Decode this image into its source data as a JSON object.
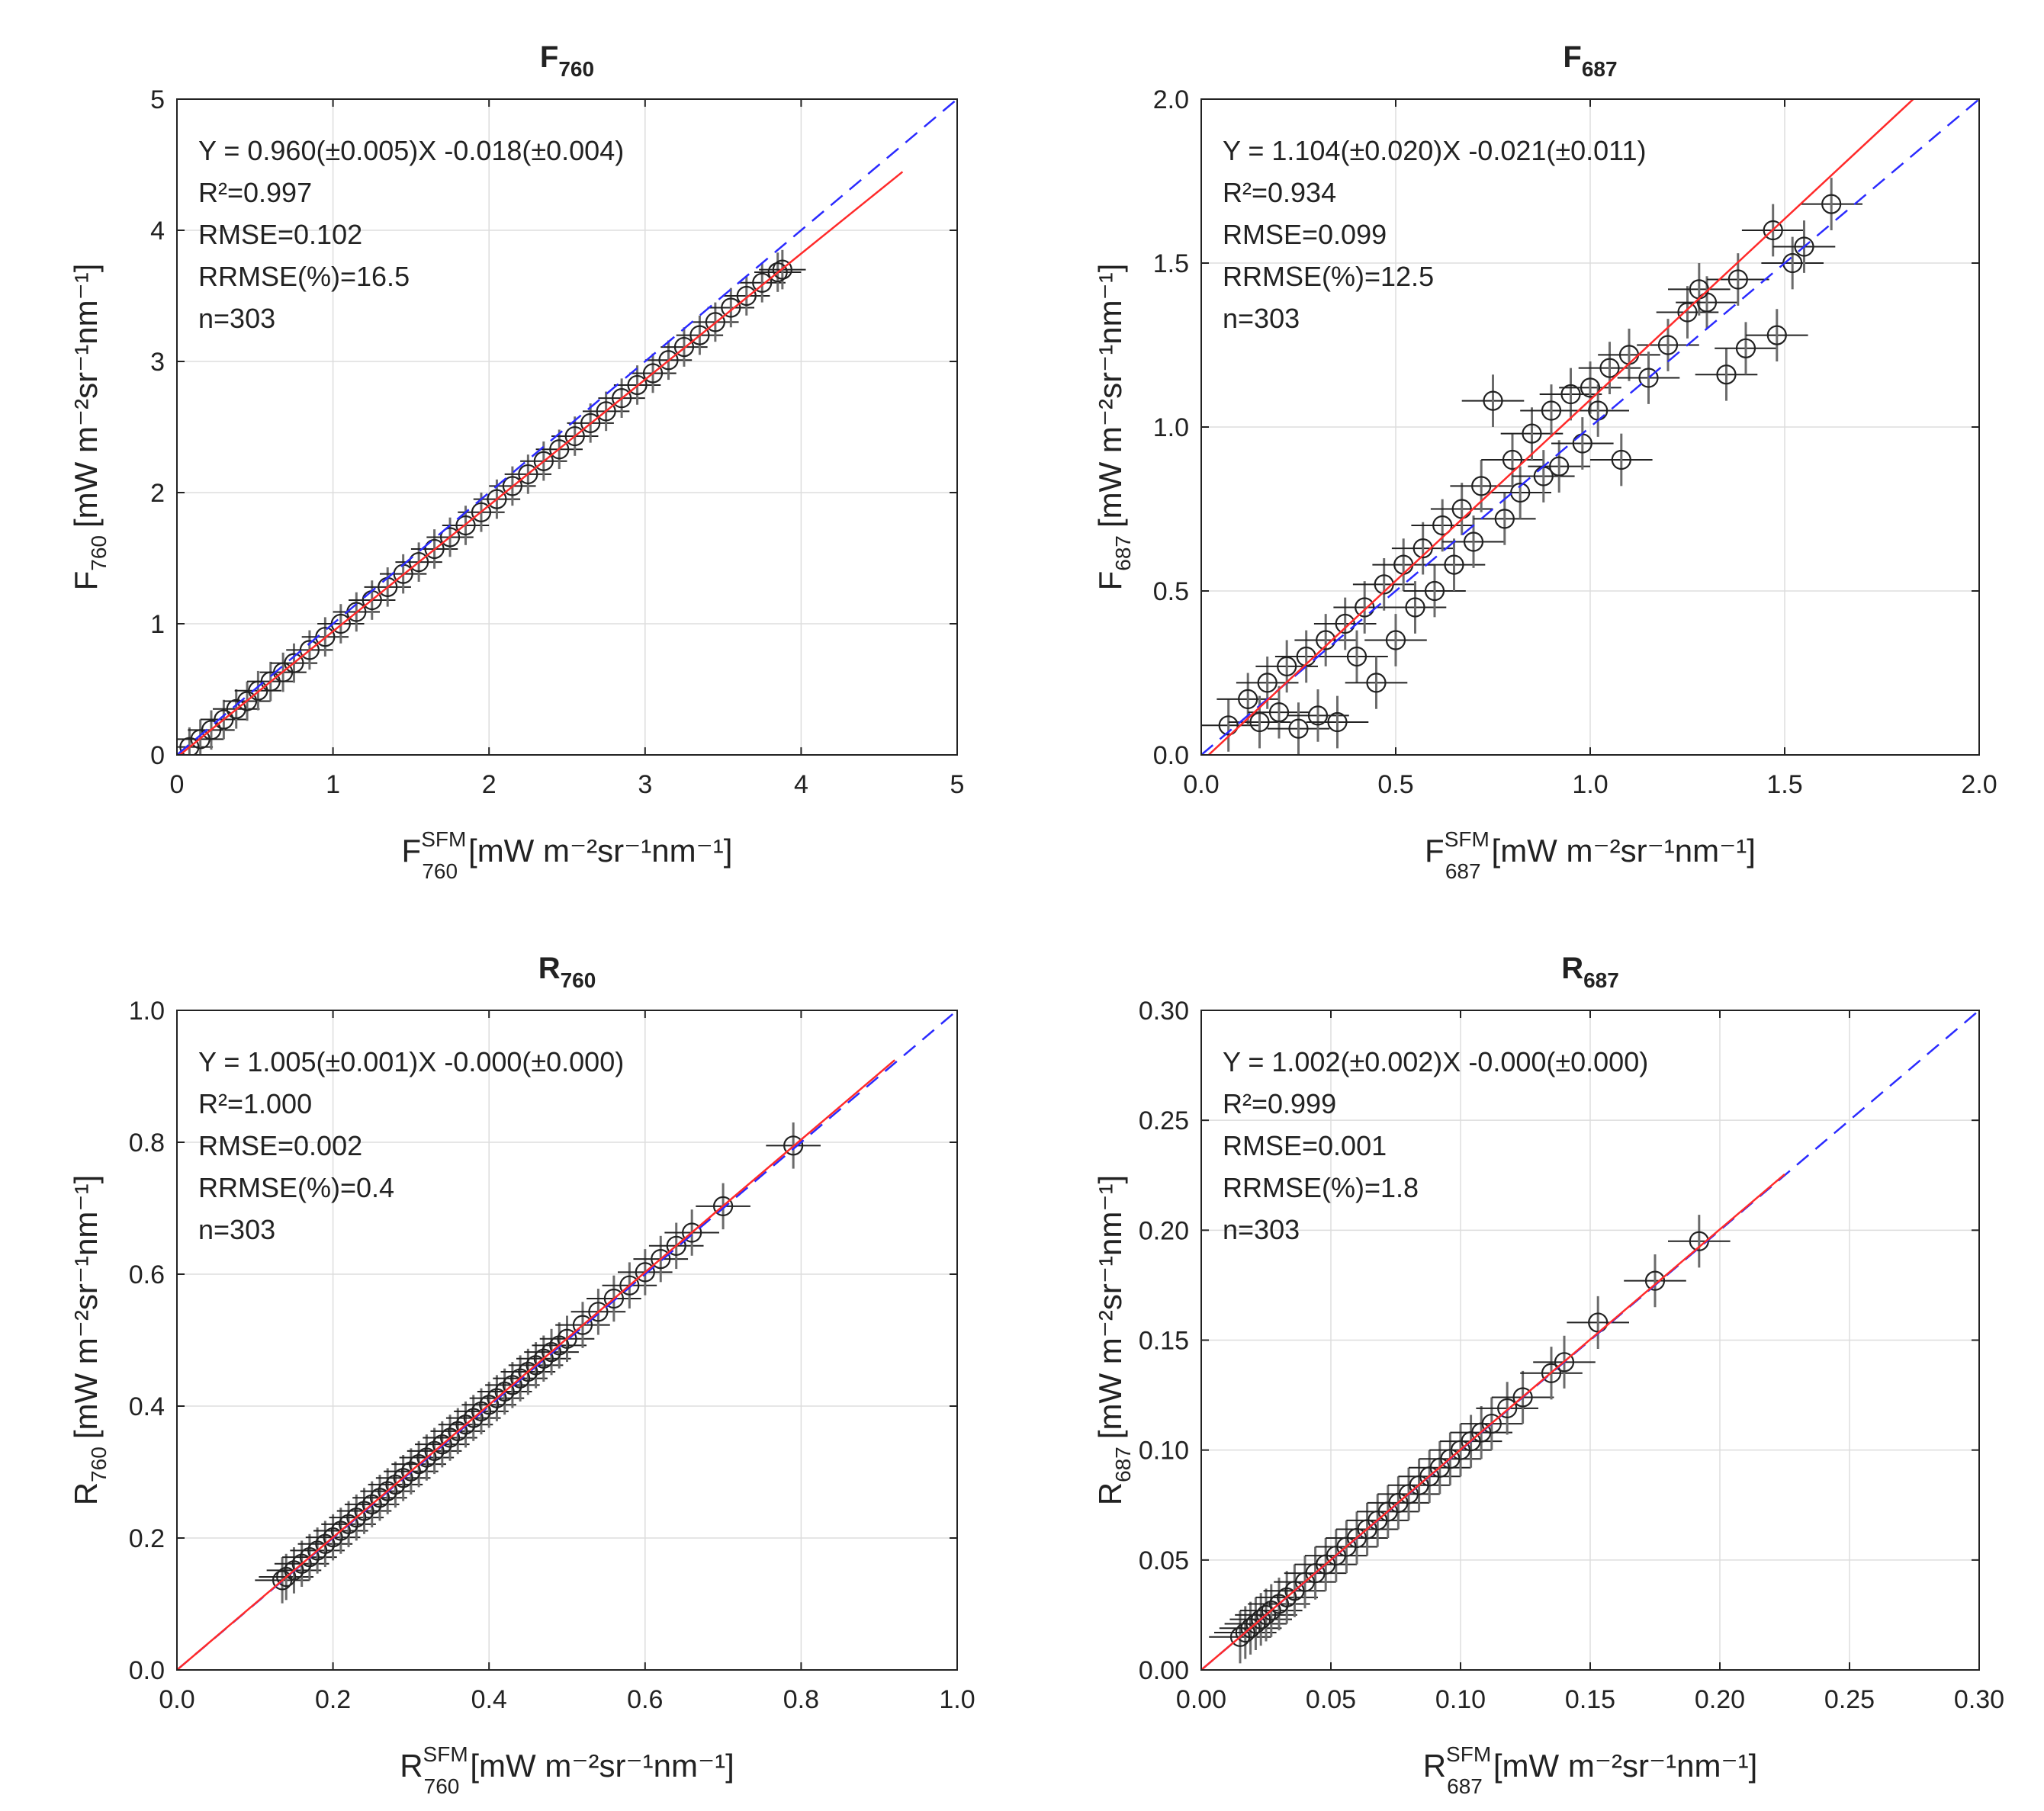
{
  "figure": {
    "colors": {
      "points": "#222222",
      "error_bars": "#6b6b6b",
      "fit_line": "#ff2a2a",
      "one_to_one": "#2a2aff",
      "grid": "#dddddd"
    }
  },
  "chart_data": [
    {
      "type": "scatter",
      "title_main": "F",
      "title_sub": "760",
      "xlabel_main": "F",
      "xlabel_sup": "SFM",
      "xlabel_sub": "760",
      "ylabel_main": "F",
      "ylabel_sub": "760",
      "units": "[mW m⁻²sr⁻¹nm⁻¹]",
      "xlim": [
        0,
        5
      ],
      "ylim": [
        0,
        5
      ],
      "xticks": [
        0,
        1,
        2,
        3,
        4,
        5
      ],
      "yticks": [
        0,
        1,
        2,
        3,
        4,
        5
      ],
      "xtick_labels": [
        "0",
        "1",
        "2",
        "3",
        "4",
        "5"
      ],
      "ytick_labels": [
        "0",
        "1",
        "2",
        "3",
        "4",
        "5"
      ],
      "grid": true,
      "stats": {
        "equation": "Y = 0.960(±0.005)X -0.018(±0.004)",
        "r2": "R²=0.997",
        "rmse": "RMSE=0.102",
        "rrmse": "RRMSE(%)=16.5",
        "n": "n=303"
      },
      "fit": {
        "slope": 0.96,
        "intercept": -0.018,
        "x_range": [
          0,
          4.65
        ]
      },
      "one_to_one_range": [
        0,
        5
      ],
      "points": [
        [
          0.08,
          0.06
        ],
        [
          0.15,
          0.12
        ],
        [
          0.22,
          0.19
        ],
        [
          0.3,
          0.27
        ],
        [
          0.38,
          0.35
        ],
        [
          0.45,
          0.41
        ],
        [
          0.52,
          0.49
        ],
        [
          0.6,
          0.56
        ],
        [
          0.68,
          0.63
        ],
        [
          0.75,
          0.7
        ],
        [
          0.85,
          0.8
        ],
        [
          0.95,
          0.9
        ],
        [
          1.05,
          1.0
        ],
        [
          1.15,
          1.09
        ],
        [
          1.25,
          1.18
        ],
        [
          1.35,
          1.28
        ],
        [
          1.45,
          1.38
        ],
        [
          1.55,
          1.47
        ],
        [
          1.65,
          1.57
        ],
        [
          1.75,
          1.66
        ],
        [
          1.85,
          1.75
        ],
        [
          1.95,
          1.85
        ],
        [
          2.05,
          1.95
        ],
        [
          2.15,
          2.05
        ],
        [
          2.25,
          2.14
        ],
        [
          2.35,
          2.24
        ],
        [
          2.45,
          2.33
        ],
        [
          2.55,
          2.43
        ],
        [
          2.65,
          2.53
        ],
        [
          2.75,
          2.62
        ],
        [
          2.85,
          2.72
        ],
        [
          2.95,
          2.82
        ],
        [
          3.05,
          2.91
        ],
        [
          3.15,
          3.01
        ],
        [
          3.25,
          3.11
        ],
        [
          3.35,
          3.2
        ],
        [
          3.45,
          3.3
        ],
        [
          3.55,
          3.41
        ],
        [
          3.65,
          3.5
        ],
        [
          3.75,
          3.6
        ],
        [
          3.85,
          3.68
        ],
        [
          3.88,
          3.7
        ]
      ],
      "xerr": 0.15,
      "yerr": 0.15
    },
    {
      "type": "scatter",
      "title_main": "F",
      "title_sub": "687",
      "xlabel_main": "F",
      "xlabel_sup": "SFM",
      "xlabel_sub": "687",
      "ylabel_main": "F",
      "ylabel_sub": "687",
      "units": "[mW m⁻²sr⁻¹nm⁻¹]",
      "xlim": [
        0,
        2.0
      ],
      "ylim": [
        0,
        2.0
      ],
      "xticks": [
        0,
        0.5,
        1.0,
        1.5,
        2.0
      ],
      "yticks": [
        0,
        0.5,
        1.0,
        1.5,
        2.0
      ],
      "xtick_labels": [
        "0.0",
        "0.5",
        "1.0",
        "1.5",
        "2.0"
      ],
      "ytick_labels": [
        "0.0",
        "0.5",
        "1.0",
        "1.5",
        "2.0"
      ],
      "grid": true,
      "stats": {
        "equation": "Y = 1.104(±0.020)X -0.021(±0.011)",
        "r2": "R²=0.934",
        "rmse": "RMSE=0.099",
        "rrmse": "RRMSE(%)=12.5",
        "n": "n=303"
      },
      "fit": {
        "slope": 1.104,
        "intercept": -0.021,
        "x_range": [
          0,
          1.83
        ]
      },
      "one_to_one_range": [
        0,
        2.0
      ],
      "points": [
        [
          0.07,
          0.09
        ],
        [
          0.12,
          0.17
        ],
        [
          0.15,
          0.1
        ],
        [
          0.17,
          0.22
        ],
        [
          0.2,
          0.13
        ],
        [
          0.22,
          0.27
        ],
        [
          0.25,
          0.08
        ],
        [
          0.27,
          0.3
        ],
        [
          0.3,
          0.12
        ],
        [
          0.32,
          0.35
        ],
        [
          0.35,
          0.1
        ],
        [
          0.37,
          0.4
        ],
        [
          0.4,
          0.3
        ],
        [
          0.42,
          0.45
        ],
        [
          0.45,
          0.22
        ],
        [
          0.47,
          0.52
        ],
        [
          0.5,
          0.35
        ],
        [
          0.52,
          0.58
        ],
        [
          0.55,
          0.45
        ],
        [
          0.57,
          0.63
        ],
        [
          0.6,
          0.5
        ],
        [
          0.62,
          0.7
        ],
        [
          0.65,
          0.58
        ],
        [
          0.67,
          0.75
        ],
        [
          0.7,
          0.65
        ],
        [
          0.72,
          0.82
        ],
        [
          0.75,
          1.08
        ],
        [
          0.78,
          0.72
        ],
        [
          0.8,
          0.9
        ],
        [
          0.82,
          0.8
        ],
        [
          0.85,
          0.98
        ],
        [
          0.88,
          0.85
        ],
        [
          0.9,
          1.05
        ],
        [
          0.92,
          0.88
        ],
        [
          0.95,
          1.1
        ],
        [
          0.98,
          0.95
        ],
        [
          1.0,
          1.12
        ],
        [
          1.02,
          1.05
        ],
        [
          1.05,
          1.18
        ],
        [
          1.08,
          0.9
        ],
        [
          1.1,
          1.22
        ],
        [
          1.15,
          1.15
        ],
        [
          1.2,
          1.25
        ],
        [
          1.25,
          1.35
        ],
        [
          1.28,
          1.42
        ],
        [
          1.3,
          1.38
        ],
        [
          1.35,
          1.16
        ],
        [
          1.38,
          1.45
        ],
        [
          1.4,
          1.24
        ],
        [
          1.47,
          1.6
        ],
        [
          1.48,
          1.28
        ],
        [
          1.52,
          1.5
        ],
        [
          1.55,
          1.55
        ],
        [
          1.62,
          1.68
        ]
      ],
      "xerr": 0.08,
      "yerr": 0.08
    },
    {
      "type": "scatter",
      "title_main": "R",
      "title_sub": "760",
      "xlabel_main": "R",
      "xlabel_sup": "SFM",
      "xlabel_sub": "760",
      "ylabel_main": "R",
      "ylabel_sub": "760",
      "units": "[mW m⁻²sr⁻¹nm⁻¹]",
      "xlim": [
        0,
        1.0
      ],
      "ylim": [
        0,
        1.0
      ],
      "xticks": [
        0,
        0.2,
        0.4,
        0.6,
        0.8,
        1.0
      ],
      "yticks": [
        0,
        0.2,
        0.4,
        0.6,
        0.8,
        1.0
      ],
      "xtick_labels": [
        "0.0",
        "0.2",
        "0.4",
        "0.6",
        "0.8",
        "1.0"
      ],
      "ytick_labels": [
        "0.0",
        "0.2",
        "0.4",
        "0.6",
        "0.8",
        "1.0"
      ],
      "grid": true,
      "stats": {
        "equation": "Y = 1.005(±0.001)X -0.000(±0.000)",
        "r2": "R²=1.000",
        "rmse": "RMSE=0.002",
        "rrmse": "RRMSE(%)=0.4",
        "n": "n=303"
      },
      "fit": {
        "slope": 1.005,
        "intercept": 0.0,
        "x_range": [
          0,
          0.92
        ]
      },
      "one_to_one_range": [
        0,
        1.0
      ],
      "points": [
        [
          0.135,
          0.136
        ],
        [
          0.14,
          0.141
        ],
        [
          0.15,
          0.151
        ],
        [
          0.16,
          0.161
        ],
        [
          0.17,
          0.171
        ],
        [
          0.18,
          0.181
        ],
        [
          0.19,
          0.191
        ],
        [
          0.2,
          0.201
        ],
        [
          0.21,
          0.211
        ],
        [
          0.22,
          0.221
        ],
        [
          0.23,
          0.231
        ],
        [
          0.24,
          0.241
        ],
        [
          0.25,
          0.251
        ],
        [
          0.26,
          0.261
        ],
        [
          0.27,
          0.271
        ],
        [
          0.28,
          0.281
        ],
        [
          0.29,
          0.291
        ],
        [
          0.3,
          0.301
        ],
        [
          0.31,
          0.312
        ],
        [
          0.32,
          0.322
        ],
        [
          0.33,
          0.332
        ],
        [
          0.34,
          0.342
        ],
        [
          0.35,
          0.352
        ],
        [
          0.36,
          0.362
        ],
        [
          0.37,
          0.372
        ],
        [
          0.38,
          0.382
        ],
        [
          0.39,
          0.392
        ],
        [
          0.4,
          0.402
        ],
        [
          0.41,
          0.412
        ],
        [
          0.42,
          0.422
        ],
        [
          0.43,
          0.432
        ],
        [
          0.44,
          0.442
        ],
        [
          0.45,
          0.452
        ],
        [
          0.46,
          0.462
        ],
        [
          0.47,
          0.472
        ],
        [
          0.48,
          0.482
        ],
        [
          0.49,
          0.492
        ],
        [
          0.5,
          0.502
        ],
        [
          0.52,
          0.523
        ],
        [
          0.54,
          0.543
        ],
        [
          0.56,
          0.563
        ],
        [
          0.58,
          0.583
        ],
        [
          0.6,
          0.603
        ],
        [
          0.62,
          0.623
        ],
        [
          0.64,
          0.643
        ],
        [
          0.66,
          0.663
        ],
        [
          0.7,
          0.703
        ],
        [
          0.79,
          0.795
        ]
      ],
      "xerr": 0.035,
      "yerr": 0.035
    },
    {
      "type": "scatter",
      "title_main": "R",
      "title_sub": "687",
      "xlabel_main": "R",
      "xlabel_sup": "SFM",
      "xlabel_sub": "687",
      "ylabel_main": "R",
      "ylabel_sub": "687",
      "units": "[mW m⁻²sr⁻¹nm⁻¹]",
      "xlim": [
        0,
        0.3
      ],
      "ylim": [
        0,
        0.3
      ],
      "xticks": [
        0,
        0.05,
        0.1,
        0.15,
        0.2,
        0.25,
        0.3
      ],
      "yticks": [
        0,
        0.05,
        0.1,
        0.15,
        0.2,
        0.25,
        0.3
      ],
      "xtick_labels": [
        "0.00",
        "0.05",
        "0.10",
        "0.15",
        "0.20",
        "0.25",
        "0.30"
      ],
      "ytick_labels": [
        "0.00",
        "0.05",
        "0.10",
        "0.15",
        "0.20",
        "0.25",
        "0.30"
      ],
      "grid": true,
      "stats": {
        "equation": "Y = 1.002(±0.002)X -0.000(±0.000)",
        "r2": "R²=0.999",
        "rmse": "RMSE=0.001",
        "rrmse": "RRMSE(%)=1.8",
        "n": "n=303"
      },
      "fit": {
        "slope": 1.002,
        "intercept": 0.0,
        "x_range": [
          0,
          0.225
        ]
      },
      "one_to_one_range": [
        0,
        0.3
      ],
      "points": [
        [
          0.015,
          0.015
        ],
        [
          0.017,
          0.017
        ],
        [
          0.019,
          0.019
        ],
        [
          0.021,
          0.021
        ],
        [
          0.023,
          0.023
        ],
        [
          0.025,
          0.025
        ],
        [
          0.027,
          0.027
        ],
        [
          0.03,
          0.03
        ],
        [
          0.033,
          0.033
        ],
        [
          0.036,
          0.036
        ],
        [
          0.04,
          0.04
        ],
        [
          0.044,
          0.044
        ],
        [
          0.048,
          0.048
        ],
        [
          0.052,
          0.052
        ],
        [
          0.056,
          0.056
        ],
        [
          0.06,
          0.06
        ],
        [
          0.064,
          0.064
        ],
        [
          0.068,
          0.068
        ],
        [
          0.072,
          0.072
        ],
        [
          0.076,
          0.076
        ],
        [
          0.08,
          0.08
        ],
        [
          0.084,
          0.084
        ],
        [
          0.088,
          0.088
        ],
        [
          0.092,
          0.092
        ],
        [
          0.096,
          0.096
        ],
        [
          0.1,
          0.1
        ],
        [
          0.104,
          0.104
        ],
        [
          0.108,
          0.108
        ],
        [
          0.112,
          0.112
        ],
        [
          0.118,
          0.119
        ],
        [
          0.124,
          0.124
        ],
        [
          0.135,
          0.135
        ],
        [
          0.14,
          0.14
        ],
        [
          0.153,
          0.158
        ],
        [
          0.175,
          0.177
        ],
        [
          0.192,
          0.195
        ]
      ],
      "xerr": 0.012,
      "yerr": 0.012
    }
  ]
}
